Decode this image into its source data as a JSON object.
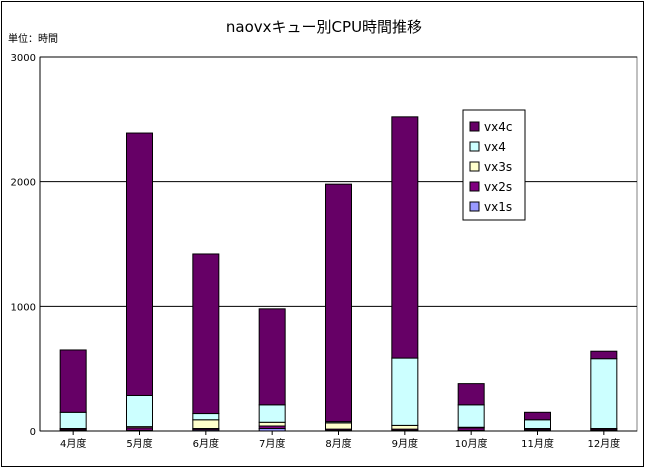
{
  "chart_data": {
    "type": "bar",
    "stacked": true,
    "title": "naovxキュー別CPU時間推移",
    "unit_label": "単位：時間",
    "categories": [
      "4月度",
      "5月度",
      "6月度",
      "7月度",
      "8月度",
      "9月度",
      "10月度",
      "11月度",
      "12月度"
    ],
    "ylim": [
      0,
      3000
    ],
    "yticks": [
      0,
      1000,
      2000,
      3000
    ],
    "grid": true,
    "legend_position": "right",
    "series": [
      {
        "name": "vx1s",
        "color": "#9999ff",
        "values": [
          5,
          5,
          10,
          20,
          5,
          5,
          5,
          5,
          5
        ]
      },
      {
        "name": "vx2s",
        "color": "#800080",
        "values": [
          10,
          20,
          10,
          20,
          10,
          10,
          20,
          10,
          10
        ]
      },
      {
        "name": "vx3s",
        "color": "#ffffcc",
        "values": [
          5,
          10,
          70,
          30,
          50,
          30,
          5,
          5,
          5
        ]
      },
      {
        "name": "vx4",
        "color": "#ccffff",
        "values": [
          130,
          250,
          50,
          140,
          10,
          540,
          180,
          70,
          560
        ]
      },
      {
        "name": "vx4c",
        "color": "#660066",
        "values": [
          500,
          2105,
          1280,
          770,
          1905,
          1935,
          170,
          60,
          60
        ]
      }
    ],
    "legend_order": [
      "vx4c",
      "vx4",
      "vx3s",
      "vx2s",
      "vx1s"
    ]
  }
}
